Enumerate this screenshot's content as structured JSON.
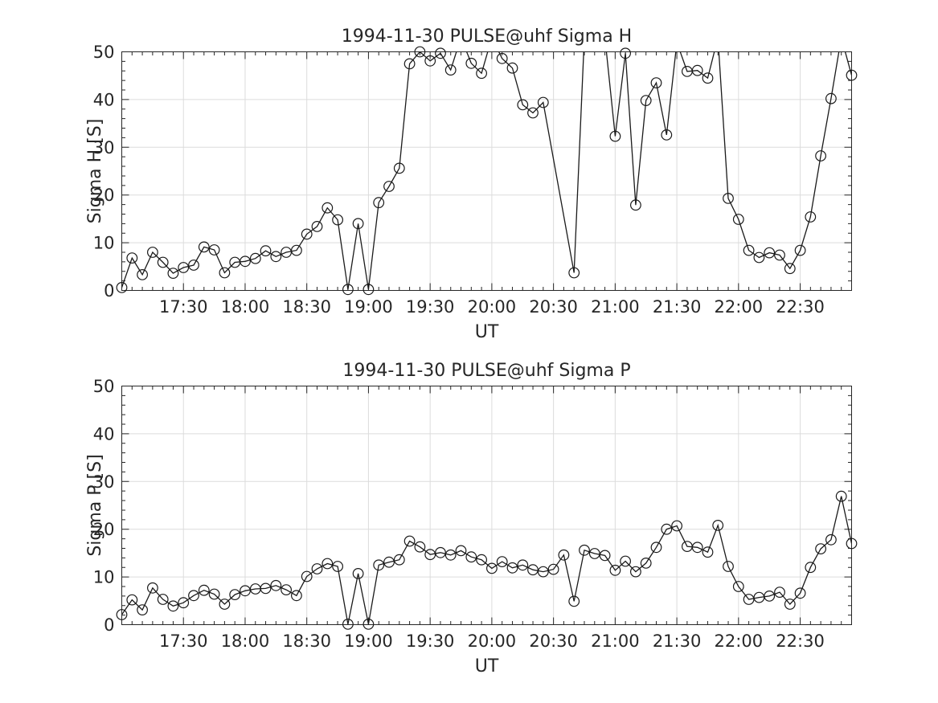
{
  "page": {
    "background": "#ffffff",
    "text_color": "#262626",
    "grid_color": "#dcdcdc",
    "data_color": "#1a1a1a"
  },
  "chart_data": [
    {
      "type": "line",
      "title": "1994-11-30  PULSE@uhf Sigma H",
      "xlabel": "UT",
      "ylabel": "Sigma H [S]",
      "ylim": [
        0,
        50
      ],
      "y_ticks": [
        0,
        10,
        20,
        30,
        40,
        50
      ],
      "y_minor_step": 2,
      "x_start": "17:00",
      "x_end": "22:55",
      "sample_interval_min": 5,
      "x_tick_labels": [
        "17:30",
        "18:00",
        "18:30",
        "19:00",
        "19:30",
        "20:00",
        "20:30",
        "21:00",
        "21:30",
        "22:00",
        "22:30"
      ],
      "grid": true,
      "legend": "none",
      "marker": "circle",
      "note_values_above_50_are_clipped_by_axes": true,
      "series": [
        {
          "name": "Sigma H",
          "times": [
            "17:00",
            "17:05",
            "17:10",
            "17:15",
            "17:20",
            "17:25",
            "17:30",
            "17:35",
            "17:40",
            "17:45",
            "17:50",
            "17:55",
            "18:00",
            "18:05",
            "18:10",
            "18:15",
            "18:20",
            "18:25",
            "18:30",
            "18:35",
            "18:40",
            "18:45",
            "18:50",
            "18:55",
            "19:00",
            "19:05",
            "19:10",
            "19:15",
            "19:20",
            "19:25",
            "19:30",
            "19:35",
            "19:40",
            "19:45",
            "19:50",
            "19:55",
            "20:00",
            "20:05",
            "20:10",
            "20:15",
            "20:20",
            "20:25",
            "20:30",
            "20:35",
            "20:40",
            "20:45",
            "20:50",
            "20:55",
            "21:00",
            "21:05",
            "21:10",
            "21:15",
            "21:20",
            "21:25",
            "21:30",
            "21:35",
            "21:40",
            "21:45",
            "21:50",
            "21:55",
            "22:00",
            "22:05",
            "22:10",
            "22:15",
            "22:20",
            "22:25",
            "22:30",
            "22:35",
            "22:40",
            "22:45",
            "22:50",
            "22:55"
          ],
          "values": [
            0.6,
            6.8,
            3.3,
            8.0,
            5.9,
            3.6,
            4.8,
            5.3,
            9.1,
            8.5,
            3.7,
            5.9,
            6.1,
            6.7,
            8.3,
            7.1,
            8.0,
            8.4,
            11.8,
            13.4,
            17.3,
            14.8,
            0.2,
            14.0,
            0.2,
            18.4,
            21.8,
            25.6,
            47.5,
            50.0,
            48.1,
            49.7,
            46.2,
            53.0,
            47.6,
            45.5,
            53.0,
            48.6,
            46.6,
            38.9,
            37.2,
            39.4,
            null,
            null,
            3.7,
            53.0,
            55.0,
            53.0,
            32.3,
            49.7,
            17.9,
            39.8,
            43.5,
            32.6,
            52.0,
            45.9,
            46.1,
            44.5,
            53.0,
            19.3,
            14.9,
            8.4,
            6.9,
            7.9,
            7.4,
            4.6,
            8.4,
            15.4,
            28.2,
            40.2,
            53.0,
            45.1
          ]
        }
      ]
    },
    {
      "type": "line",
      "title": "1994-11-30  PULSE@uhf Sigma P",
      "xlabel": "UT",
      "ylabel": "Sigma P [S]",
      "ylim": [
        0,
        50
      ],
      "y_ticks": [
        0,
        10,
        20,
        30,
        40,
        50
      ],
      "y_minor_step": 2,
      "x_start": "17:00",
      "x_end": "22:55",
      "sample_interval_min": 5,
      "x_tick_labels": [
        "17:30",
        "18:00",
        "18:30",
        "19:00",
        "19:30",
        "20:00",
        "20:30",
        "21:00",
        "21:30",
        "22:00",
        "22:30"
      ],
      "grid": true,
      "legend": "none",
      "marker": "circle",
      "series": [
        {
          "name": "Sigma P",
          "times": [
            "17:00",
            "17:05",
            "17:10",
            "17:15",
            "17:20",
            "17:25",
            "17:30",
            "17:35",
            "17:40",
            "17:45",
            "17:50",
            "17:55",
            "18:00",
            "18:05",
            "18:10",
            "18:15",
            "18:20",
            "18:25",
            "18:30",
            "18:35",
            "18:40",
            "18:45",
            "18:50",
            "18:55",
            "19:00",
            "19:05",
            "19:10",
            "19:15",
            "19:20",
            "19:25",
            "19:30",
            "19:35",
            "19:40",
            "19:45",
            "19:50",
            "19:55",
            "20:00",
            "20:05",
            "20:10",
            "20:15",
            "20:20",
            "20:25",
            "20:30",
            "20:35",
            "20:40",
            "20:45",
            "20:50",
            "20:55",
            "21:00",
            "21:05",
            "21:10",
            "21:15",
            "21:20",
            "21:25",
            "21:30",
            "21:35",
            "21:40",
            "21:45",
            "21:50",
            "21:55",
            "22:00",
            "22:05",
            "22:10",
            "22:15",
            "22:20",
            "22:25",
            "22:30",
            "22:35",
            "22:40",
            "22:45",
            "22:50",
            "22:55"
          ],
          "values": [
            2.1,
            5.2,
            3.1,
            7.7,
            5.3,
            3.9,
            4.6,
            6.1,
            7.2,
            6.4,
            4.3,
            6.3,
            7.1,
            7.5,
            7.6,
            8.2,
            7.3,
            6.1,
            10.1,
            11.7,
            12.8,
            12.2,
            0.1,
            10.7,
            0.1,
            12.5,
            13.1,
            13.6,
            17.5,
            16.3,
            14.7,
            15.1,
            14.6,
            15.5,
            14.2,
            13.6,
            11.8,
            13.2,
            11.9,
            12.5,
            11.5,
            11.1,
            11.6,
            14.6,
            4.9,
            15.6,
            14.9,
            14.5,
            11.4,
            13.3,
            11.1,
            12.9,
            16.2,
            20.0,
            20.7,
            16.4,
            16.2,
            15.2,
            20.8,
            12.2,
            8.0,
            5.3,
            5.7,
            6.0,
            6.8,
            4.3,
            6.6,
            12.0,
            15.9,
            17.8,
            26.9,
            17.0
          ]
        }
      ]
    }
  ]
}
